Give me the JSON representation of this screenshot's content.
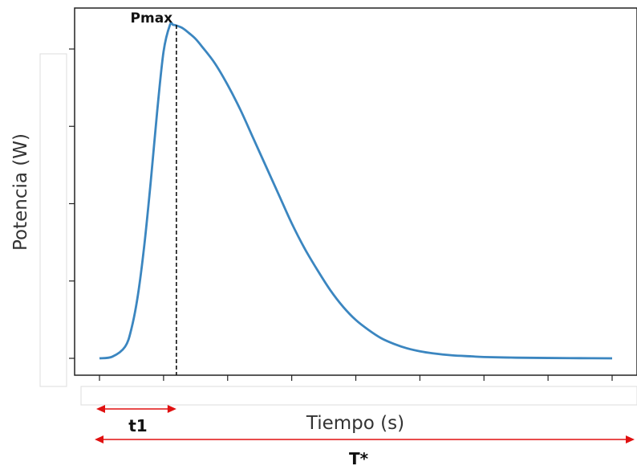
{
  "chart_data": {
    "type": "line",
    "xlabel": "Tiempo (s)",
    "ylabel": "Potencia (W)",
    "xlim": [
      0,
      8
    ],
    "ylim": [
      0,
      1.05
    ],
    "x_ticks": [
      0,
      1,
      2,
      3,
      4,
      5,
      6,
      7,
      8
    ],
    "y_ticks": [
      0,
      0.22,
      0.44,
      0.66,
      0.88
    ],
    "tick_labels_visible": false,
    "grid": false,
    "series": [
      {
        "color": "#3b86c0",
        "x": [
          0,
          0.2,
          0.4,
          0.5,
          0.6,
          0.7,
          0.8,
          0.9,
          1.0,
          1.1,
          1.15,
          1.2,
          1.3,
          1.4,
          1.5,
          1.6,
          1.8,
          2.0,
          2.2,
          2.4,
          2.6,
          2.8,
          3.0,
          3.2,
          3.4,
          3.6,
          3.8,
          4.0,
          4.2,
          4.4,
          4.6,
          4.8,
          5.0,
          5.2,
          5.5,
          5.8,
          6.0,
          6.5,
          7.0,
          7.5,
          8.0
        ],
        "y": [
          0.0,
          0.005,
          0.035,
          0.09,
          0.19,
          0.34,
          0.53,
          0.74,
          0.92,
          1.0,
          1.0,
          0.998,
          0.99,
          0.975,
          0.958,
          0.935,
          0.885,
          0.82,
          0.745,
          0.66,
          0.575,
          0.49,
          0.405,
          0.33,
          0.265,
          0.205,
          0.155,
          0.115,
          0.085,
          0.06,
          0.043,
          0.03,
          0.021,
          0.015,
          0.009,
          0.006,
          0.004,
          0.002,
          0.001,
          0.0005,
          0.0
        ]
      }
    ],
    "annotations": {
      "peak_label": "Pmax",
      "peak_x": 1.2,
      "t1_label": "t1",
      "t1_range": [
        0,
        1.2
      ],
      "t_total_label": "T*",
      "t_total_range": [
        0,
        8
      ],
      "arrow_color": "#e01010"
    }
  }
}
